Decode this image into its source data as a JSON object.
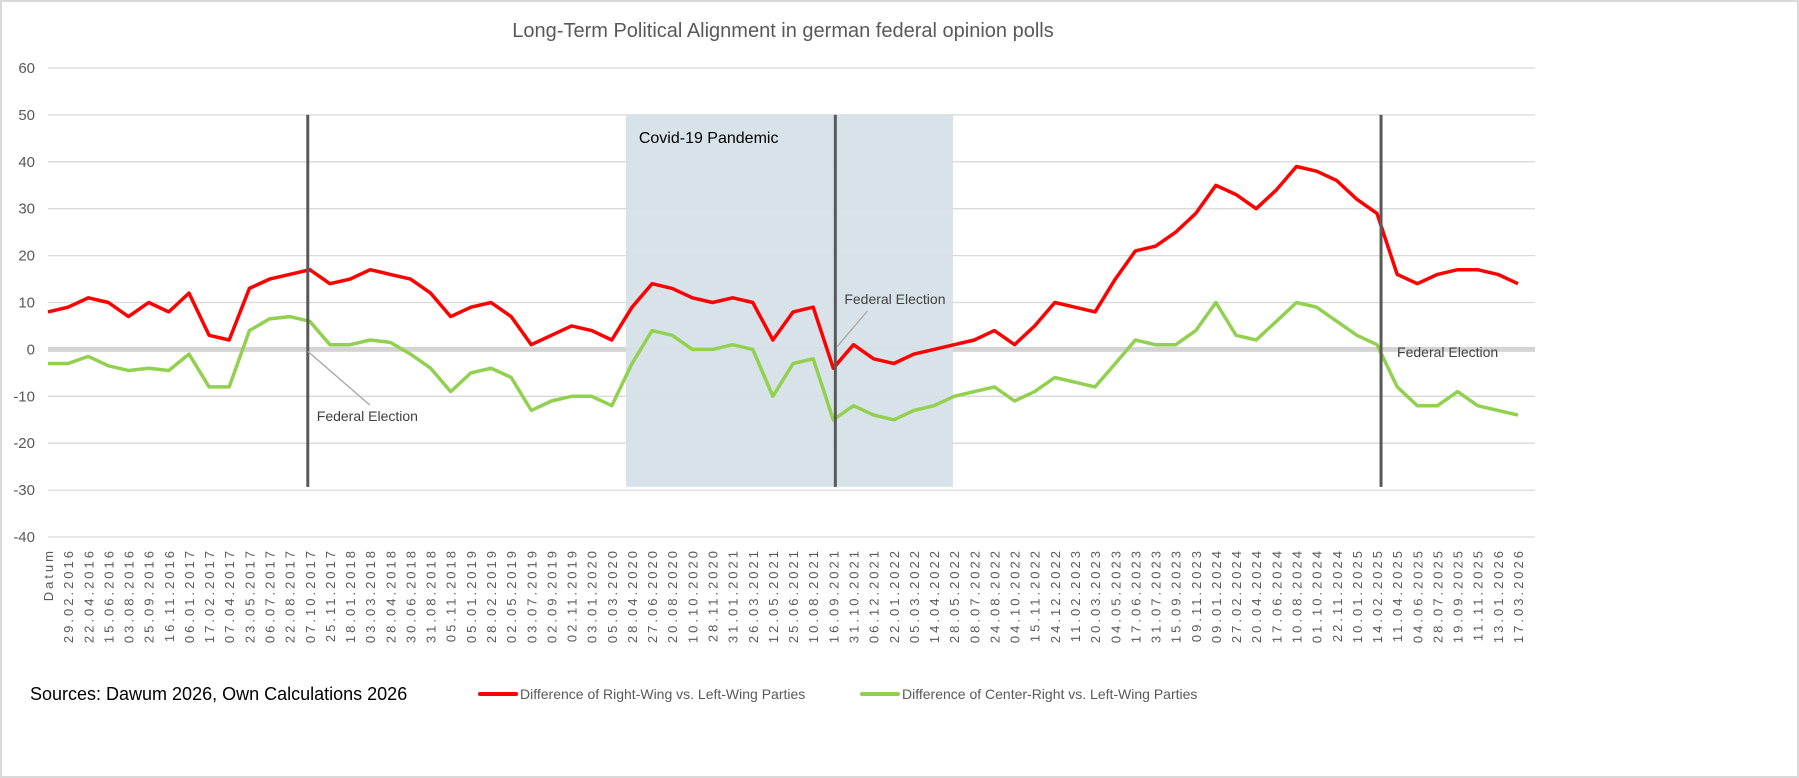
{
  "chart_data": {
    "type": "line",
    "title": "Long-Term Political Alignment in german federal opinion polls",
    "xlabel": "",
    "ylabel": "",
    "ylim": [
      -40,
      60
    ],
    "yticks": [
      60,
      50,
      40,
      30,
      20,
      10,
      0,
      -10,
      -20,
      -30,
      -40
    ],
    "grid": true,
    "legend_position": "bottom",
    "categories": [
      "Datum",
      "29.02.2016",
      "22.04.2016",
      "15.06.2016",
      "03.08.2016",
      "25.09.2016",
      "16.11.2016",
      "06.01.2017",
      "17.02.2017",
      "07.04.2017",
      "23.05.2017",
      "06.07.2017",
      "22.08.2017",
      "07.10.2017",
      "25.11.2017",
      "18.01.2018",
      "03.03.2018",
      "28.04.2018",
      "30.06.2018",
      "31.08.2018",
      "05.11.2018",
      "05.01.2019",
      "28.02.2019",
      "02.05.2019",
      "03.07.2019",
      "02.09.2019",
      "02.11.2019",
      "03.01.2020",
      "05.03.2020",
      "28.04.2020",
      "27.06.2020",
      "20.08.2020",
      "10.10.2020",
      "28.11.2020",
      "31.01.2021",
      "26.03.2021",
      "12.05.2021",
      "25.06.2021",
      "10.08.2021",
      "16.09.2021",
      "31.10.2021",
      "06.12.2021",
      "22.01.2022",
      "05.03.2022",
      "14.04.2022",
      "28.05.2022",
      "08.07.2022",
      "24.08.2022",
      "04.10.2022",
      "15.11.2022",
      "24.12.2022",
      "11.02.2023",
      "20.03.2023",
      "04.05.2023",
      "17.06.2023",
      "31.07.2023",
      "15.09.2023",
      "09.11.2023",
      "09.01.2024",
      "27.02.2024",
      "20.04.2024",
      "17.06.2024",
      "10.08.2024",
      "01.10.2024",
      "22.11.2024",
      "10.01.2025",
      "14.02.2025",
      "11.04.2025",
      "04.06.2025",
      "28.07.2025",
      "19.09.2025",
      "11.11.2025",
      "13.01.2026",
      "17.03.2026"
    ],
    "series": [
      {
        "name": "Difference of Right-Wing vs. Left-Wing Parties",
        "color": "#ff0000",
        "values": [
          8,
          9,
          11,
          10,
          7,
          10,
          8,
          12,
          3,
          2,
          13,
          15,
          16,
          17,
          14,
          15,
          17,
          16,
          15,
          12,
          7,
          9,
          10,
          7,
          1,
          3,
          5,
          4,
          2,
          9,
          14,
          13,
          11,
          10,
          11,
          10,
          2,
          8,
          9,
          -4,
          1,
          -2,
          -3,
          -1,
          0,
          1,
          2,
          4,
          1,
          5,
          10,
          9,
          8,
          15,
          21,
          22,
          25,
          29,
          35,
          33,
          30,
          34,
          39,
          38,
          36,
          32,
          29,
          16,
          14,
          16,
          17,
          17,
          16,
          14
        ]
      },
      {
        "name": "Difference of Center-Right vs. Left-Wing Parties",
        "color": "#92d050",
        "values": [
          -3,
          -3,
          -1.5,
          -3.5,
          -4.5,
          -4,
          -4.5,
          -1,
          -8,
          -8,
          4,
          6.5,
          7,
          6,
          1,
          1,
          2,
          1.5,
          -1,
          -4,
          -9,
          -5,
          -4,
          -6,
          -13,
          -11,
          -10,
          -10,
          -12,
          -3,
          4,
          3,
          0,
          0,
          1,
          0,
          -10,
          -3,
          -2,
          -15,
          -12,
          -14,
          -15,
          -13,
          -12,
          -10,
          -9,
          -8,
          -11,
          -9,
          -6,
          -7,
          -8,
          -3,
          2,
          1,
          1,
          4,
          10,
          3,
          2,
          6,
          10,
          9,
          6,
          3,
          1,
          -8,
          -12,
          -12,
          -9,
          -12,
          -13,
          -14
        ]
      }
    ],
    "shaded_regions": [
      {
        "label": "Covid-19 Pandemic",
        "start": "05.03.2020",
        "end": "14.04.2022",
        "color": "#d6e1e8"
      }
    ],
    "vertical_markers": [
      {
        "label": "Federal Election",
        "at": "07.10.2017"
      },
      {
        "label": "Federal Election",
        "at": "16.09.2021"
      },
      {
        "label": "Federal Election",
        "at": "14.02.2025"
      }
    ]
  },
  "source_note": "Sources: Dawum 2026, Own Calculations 2026"
}
